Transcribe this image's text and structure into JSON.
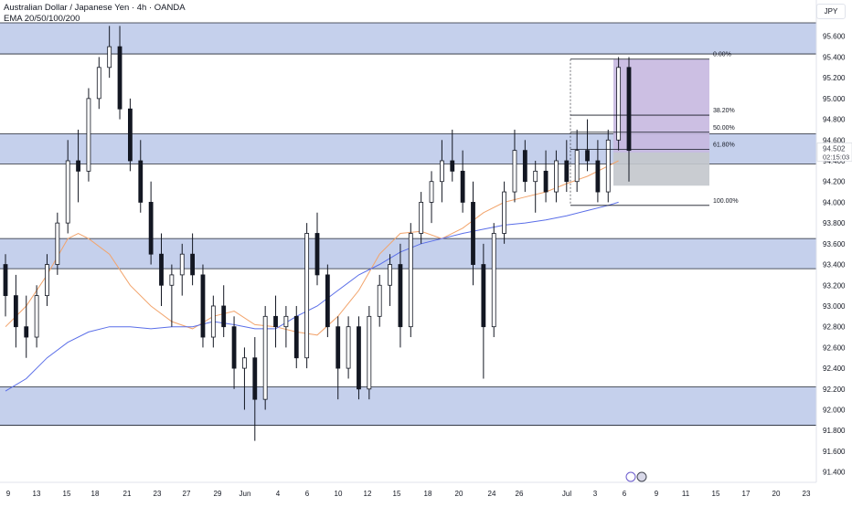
{
  "header": {
    "symbol_line": "Australian Dollar / Japanese Yen · 4h · OANDA",
    "indicator_line": "EMA 20/50/100/200"
  },
  "currency_button": "JPY",
  "price_axis": {
    "ticks": [
      "95.800",
      "95.600",
      "95.400",
      "95.200",
      "95.000",
      "94.800",
      "94.600",
      "94.400",
      "94.200",
      "94.000",
      "93.800",
      "93.600",
      "93.400",
      "93.200",
      "93.000",
      "92.800",
      "92.600",
      "92.400",
      "92.200",
      "92.000",
      "91.800",
      "91.600",
      "91.400"
    ]
  },
  "time_axis": {
    "ticks": [
      "9",
      "13",
      "15",
      "18",
      "21",
      "23",
      "27",
      "29",
      "Jun",
      "4",
      "6",
      "10",
      "12",
      "15",
      "18",
      "20",
      "24",
      "26",
      "Jul",
      "3",
      "6",
      "9",
      "11",
      "15",
      "17",
      "20",
      "23"
    ]
  },
  "last_price": {
    "value": "94.502",
    "countdown": "02:15:03",
    "color": "#434651"
  },
  "colors": {
    "zone_fill": "#c5d0ec",
    "zone_border": "#1f2430",
    "candle": "#131722",
    "ema_orange": "#f2a46c",
    "ema_blue": "#5a6ee8",
    "target_zone": "#c7b8e0",
    "stop_zone": "#c3c6cc"
  },
  "chart_data": {
    "type": "candlestick",
    "instrument": "Australian Dollar / Japanese Yen",
    "timeframe": "4h",
    "source": "OANDA",
    "ylim": [
      91.3,
      95.95
    ],
    "indicators": [
      "EMA 20/50/100/200"
    ],
    "last_price": 94.502,
    "zones": [
      {
        "low": 95.43,
        "high": 95.73
      },
      {
        "low": 94.37,
        "high": 94.66
      },
      {
        "low": 93.36,
        "high": 93.65
      },
      {
        "low": 91.85,
        "high": 92.22
      }
    ],
    "fibonacci": {
      "high": 95.38,
      "low": 93.97,
      "levels": [
        {
          "label": "0.00%",
          "price": 95.38
        },
        {
          "label": "38.20%",
          "price": 94.84
        },
        {
          "label": "50.00%",
          "price": 94.675
        },
        {
          "label": "61.80%",
          "price": 94.51
        },
        {
          "label": "100.00%",
          "price": 93.97
        }
      ]
    },
    "position_tool": {
      "entry": 94.48,
      "target": 95.38,
      "stop": 94.16
    },
    "ema_series": [
      {
        "role": "orange",
        "points": [
          [
            0,
            92.8
          ],
          [
            2,
            93.0
          ],
          [
            4,
            93.3
          ],
          [
            6,
            93.65
          ],
          [
            7,
            93.7
          ],
          [
            8,
            93.65
          ],
          [
            10,
            93.5
          ],
          [
            12,
            93.2
          ],
          [
            14,
            93.0
          ],
          [
            16,
            92.85
          ],
          [
            18,
            92.78
          ],
          [
            20,
            92.9
          ],
          [
            22,
            92.95
          ],
          [
            24,
            92.82
          ],
          [
            26,
            92.8
          ],
          [
            28,
            92.75
          ],
          [
            30,
            92.72
          ],
          [
            32,
            92.9
          ],
          [
            34,
            93.15
          ],
          [
            36,
            93.5
          ],
          [
            38,
            93.7
          ],
          [
            40,
            93.72
          ],
          [
            42,
            93.65
          ],
          [
            44,
            93.75
          ],
          [
            46,
            93.9
          ],
          [
            48,
            94.0
          ],
          [
            50,
            94.05
          ],
          [
            52,
            94.1
          ],
          [
            54,
            94.18
          ],
          [
            56,
            94.25
          ],
          [
            58,
            94.35
          ],
          [
            59,
            94.4
          ]
        ]
      },
      {
        "role": "blue",
        "points": [
          [
            0,
            92.18
          ],
          [
            2,
            92.3
          ],
          [
            4,
            92.5
          ],
          [
            6,
            92.65
          ],
          [
            8,
            92.75
          ],
          [
            10,
            92.8
          ],
          [
            12,
            92.8
          ],
          [
            14,
            92.78
          ],
          [
            16,
            92.8
          ],
          [
            18,
            92.8
          ],
          [
            20,
            92.85
          ],
          [
            22,
            92.82
          ],
          [
            24,
            92.78
          ],
          [
            26,
            92.78
          ],
          [
            28,
            92.9
          ],
          [
            30,
            93.0
          ],
          [
            32,
            93.15
          ],
          [
            34,
            93.3
          ],
          [
            36,
            93.4
          ],
          [
            38,
            93.52
          ],
          [
            40,
            93.6
          ],
          [
            42,
            93.65
          ],
          [
            44,
            93.7
          ],
          [
            46,
            93.74
          ],
          [
            48,
            93.78
          ],
          [
            50,
            93.8
          ],
          [
            52,
            93.83
          ],
          [
            54,
            93.87
          ],
          [
            56,
            93.92
          ],
          [
            58,
            93.97
          ],
          [
            59,
            94.0
          ]
        ]
      }
    ],
    "candles": [
      [
        93.4,
        93.5,
        92.9,
        93.1
      ],
      [
        93.1,
        93.3,
        92.6,
        92.8
      ],
      [
        92.8,
        93.1,
        92.5,
        92.7
      ],
      [
        92.7,
        93.2,
        92.6,
        93.1
      ],
      [
        93.1,
        93.5,
        93.0,
        93.4
      ],
      [
        93.4,
        93.9,
        93.3,
        93.8
      ],
      [
        93.8,
        94.6,
        93.7,
        94.4
      ],
      [
        94.4,
        94.7,
        94.0,
        94.3
      ],
      [
        94.3,
        95.1,
        94.2,
        95.0
      ],
      [
        95.0,
        95.4,
        94.9,
        95.3
      ],
      [
        95.3,
        95.7,
        95.2,
        95.5
      ],
      [
        95.5,
        95.7,
        94.8,
        94.9
      ],
      [
        94.9,
        95.0,
        94.3,
        94.4
      ],
      [
        94.4,
        94.6,
        93.9,
        94.0
      ],
      [
        94.0,
        94.2,
        93.4,
        93.5
      ],
      [
        93.5,
        93.7,
        93.0,
        93.2
      ],
      [
        93.2,
        93.4,
        92.8,
        93.3
      ],
      [
        93.3,
        93.6,
        93.1,
        93.5
      ],
      [
        93.5,
        93.7,
        93.2,
        93.3
      ],
      [
        93.3,
        93.4,
        92.6,
        92.7
      ],
      [
        92.7,
        93.1,
        92.6,
        93.0
      ],
      [
        93.0,
        93.2,
        92.7,
        92.8
      ],
      [
        92.8,
        92.9,
        92.2,
        92.4
      ],
      [
        92.4,
        92.6,
        92.0,
        92.5
      ],
      [
        92.5,
        92.7,
        91.7,
        92.1
      ],
      [
        92.1,
        93.0,
        92.0,
        92.9
      ],
      [
        92.9,
        93.1,
        92.6,
        92.8
      ],
      [
        92.8,
        93.0,
        92.6,
        92.9
      ],
      [
        92.9,
        93.0,
        92.4,
        92.5
      ],
      [
        92.5,
        93.8,
        92.4,
        93.7
      ],
      [
        93.7,
        93.9,
        93.2,
        93.3
      ],
      [
        93.3,
        93.4,
        92.7,
        92.8
      ],
      [
        92.8,
        92.9,
        92.1,
        92.4
      ],
      [
        92.4,
        92.9,
        92.3,
        92.8
      ],
      [
        92.8,
        92.9,
        92.1,
        92.2
      ],
      [
        92.2,
        93.0,
        92.1,
        92.9
      ],
      [
        92.9,
        93.3,
        92.8,
        93.2
      ],
      [
        93.2,
        93.5,
        93.0,
        93.4
      ],
      [
        93.4,
        93.6,
        92.6,
        92.8
      ],
      [
        92.8,
        93.8,
        92.7,
        93.7
      ],
      [
        93.7,
        94.1,
        93.6,
        94.0
      ],
      [
        94.0,
        94.3,
        93.8,
        94.2
      ],
      [
        94.2,
        94.6,
        94.0,
        94.4
      ],
      [
        94.4,
        94.7,
        94.2,
        94.3
      ],
      [
        94.3,
        94.5,
        93.9,
        94.0
      ],
      [
        94.0,
        94.2,
        93.2,
        93.4
      ],
      [
        93.4,
        93.6,
        92.3,
        92.8
      ],
      [
        92.8,
        93.8,
        92.7,
        93.7
      ],
      [
        93.7,
        94.2,
        93.6,
        94.1
      ],
      [
        94.1,
        94.7,
        94.0,
        94.5
      ],
      [
        94.5,
        94.6,
        94.1,
        94.2
      ],
      [
        94.2,
        94.4,
        93.9,
        94.3
      ],
      [
        94.3,
        94.5,
        94.0,
        94.1
      ],
      [
        94.1,
        94.5,
        94.0,
        94.4
      ],
      [
        94.4,
        94.6,
        94.1,
        94.2
      ],
      [
        94.2,
        94.7,
        94.1,
        94.5
      ],
      [
        94.5,
        94.8,
        94.3,
        94.4
      ],
      [
        94.4,
        94.6,
        94.0,
        94.1
      ],
      [
        94.1,
        94.7,
        94.0,
        94.6
      ],
      [
        94.6,
        95.4,
        94.5,
        95.3
      ],
      [
        95.3,
        95.4,
        94.2,
        94.5
      ]
    ]
  }
}
